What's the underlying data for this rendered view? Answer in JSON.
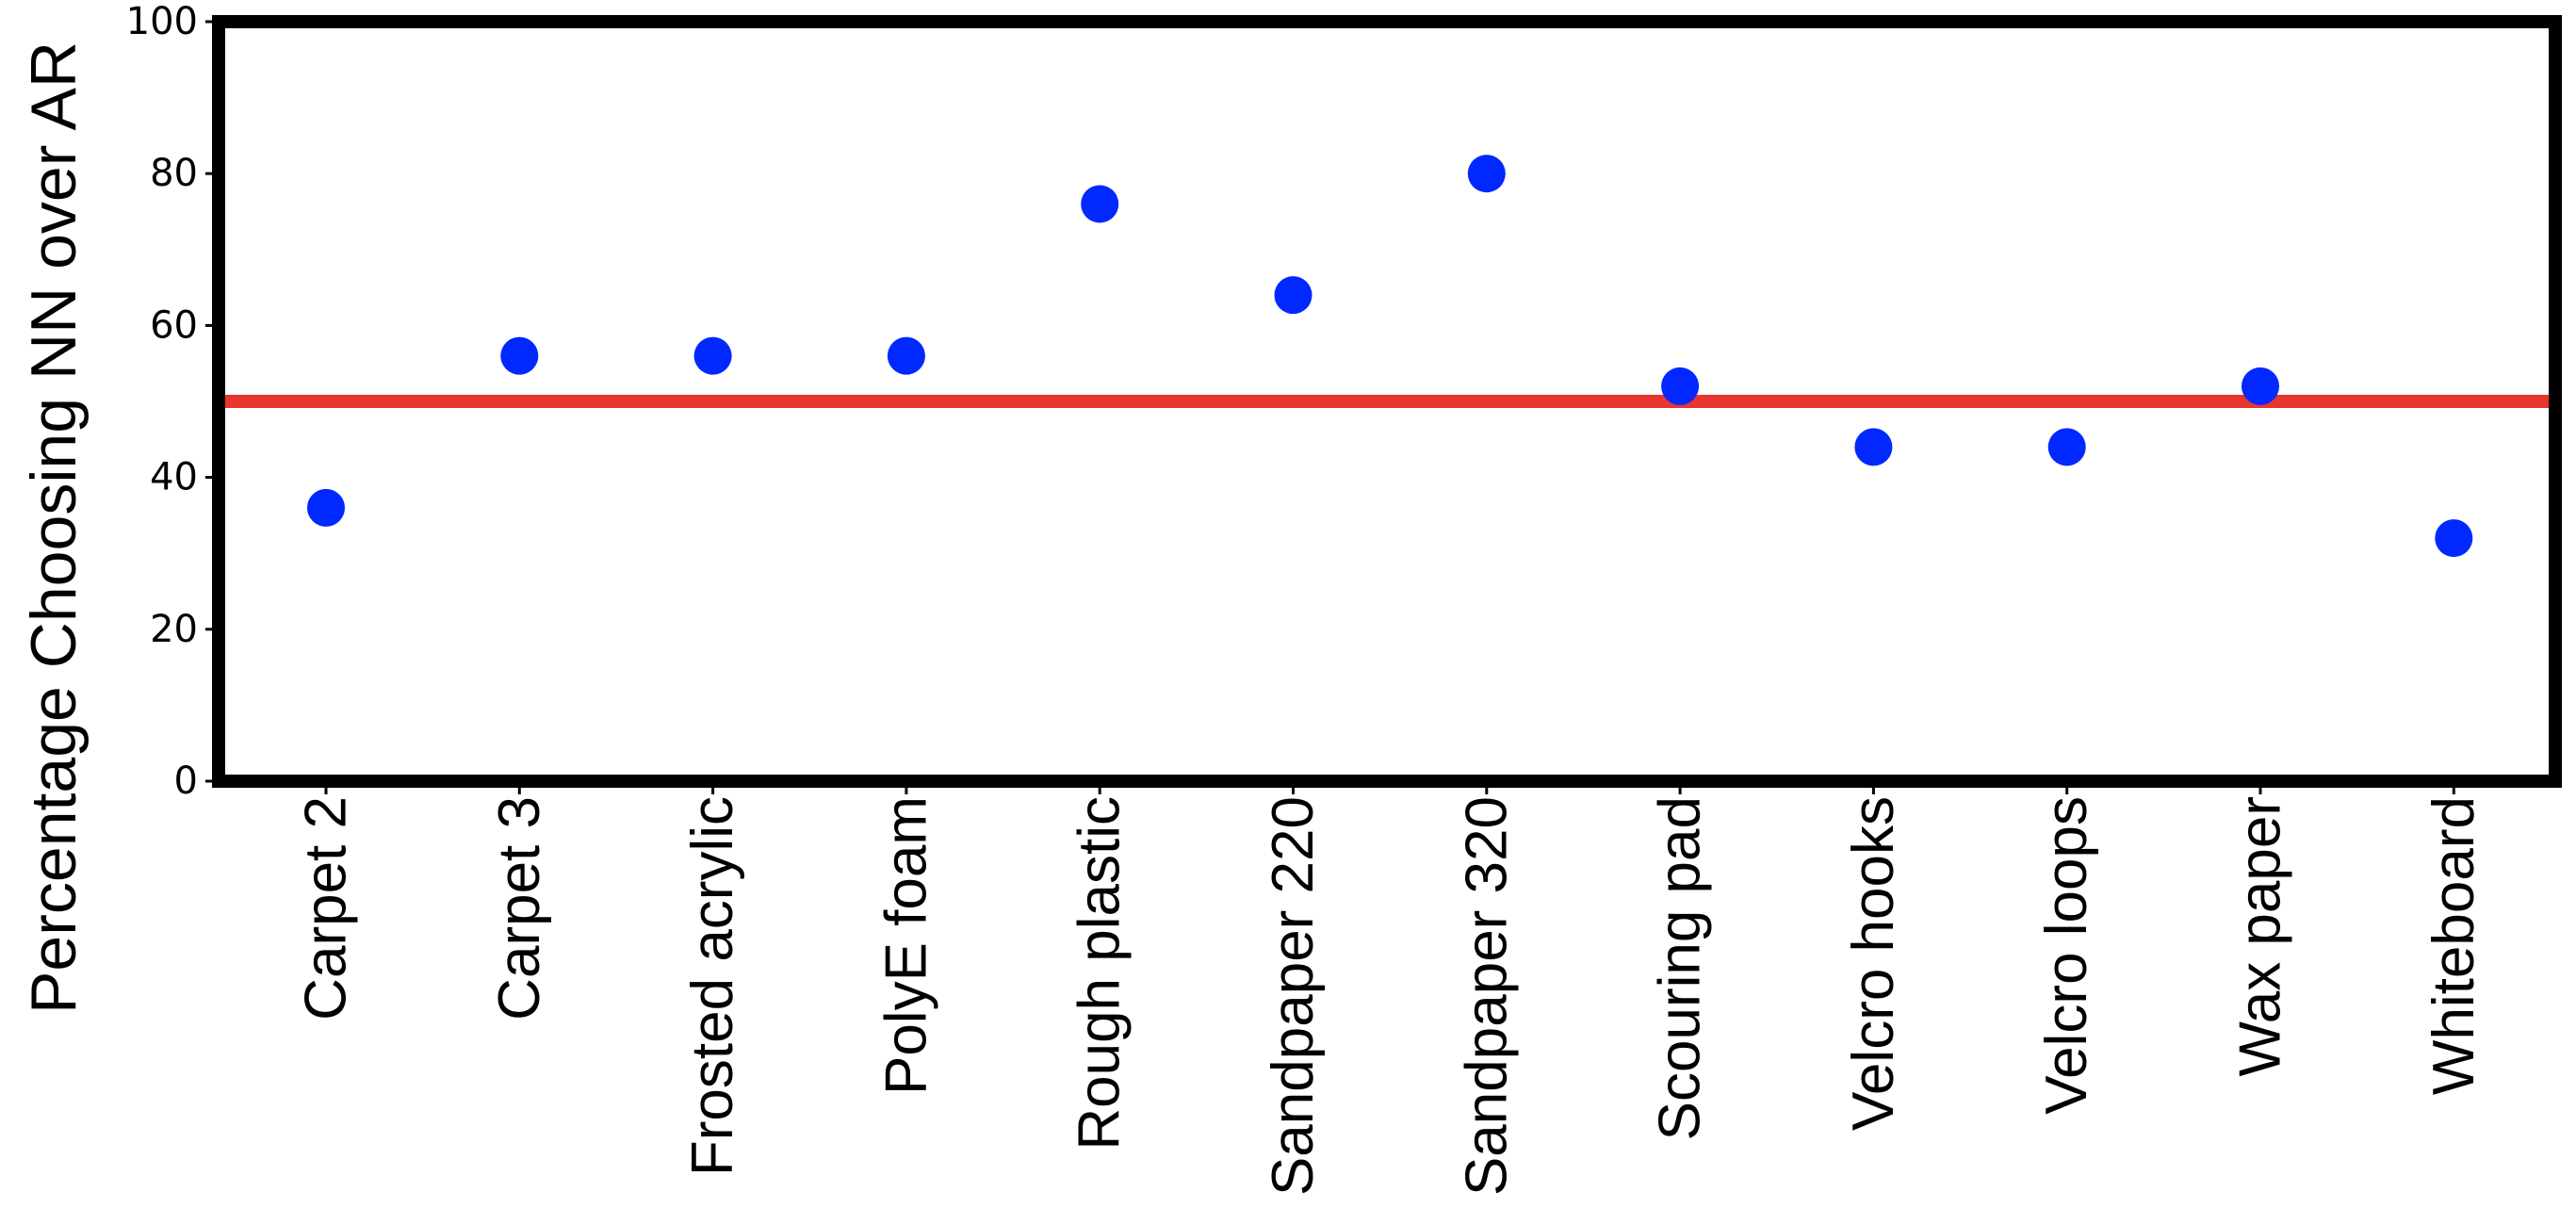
{
  "chart_data": {
    "type": "scatter",
    "categories": [
      "Carpet 2",
      "Carpet 3",
      "Frosted acrylic",
      "PolyE foam",
      "Rough plastic",
      "Sandpaper 220",
      "Sandpaper 320",
      "Scouring pad",
      "Velcro hooks",
      "Velcro loops",
      "Wax paper",
      "Whiteboard"
    ],
    "values": [
      36,
      56,
      56,
      56,
      76,
      64,
      80,
      52,
      44,
      44,
      52,
      32
    ],
    "title": "",
    "xlabel": "",
    "ylabel": "Percentage Choosing NN over AR",
    "ylim": [
      0,
      100
    ],
    "yticks": [
      "0",
      "20",
      "40",
      "60",
      "80",
      "100"
    ],
    "reference_line": 50,
    "grid": false,
    "colors": {
      "points": "#0028ff",
      "reference_line": "#e8352e",
      "frame": "#000000"
    }
  }
}
